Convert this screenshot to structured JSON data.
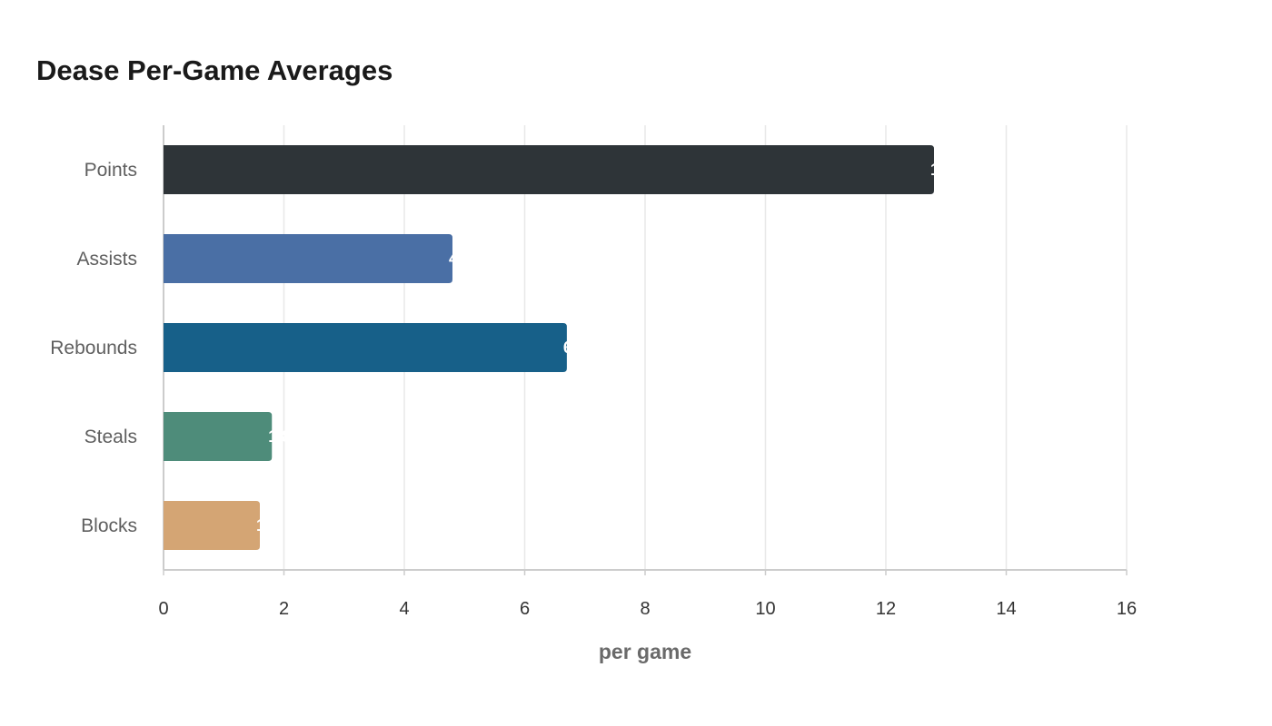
{
  "chart_data": {
    "type": "bar",
    "orientation": "horizontal",
    "title": "Dease Per-Game Averages",
    "xlabel": "per game",
    "ylabel": "",
    "categories": [
      "Points",
      "Assists",
      "Rebounds",
      "Steals",
      "Blocks"
    ],
    "values": [
      12.8,
      4.8,
      6.7,
      1.8,
      1.6
    ],
    "colors": [
      "#2e3438",
      "#4a6fa5",
      "#176089",
      "#4e8c7a",
      "#d4a574"
    ],
    "xlim": [
      0,
      16
    ],
    "xticks": [
      0,
      2,
      4,
      6,
      8,
      10,
      12,
      14,
      16
    ],
    "grid": true,
    "legend": "none"
  }
}
